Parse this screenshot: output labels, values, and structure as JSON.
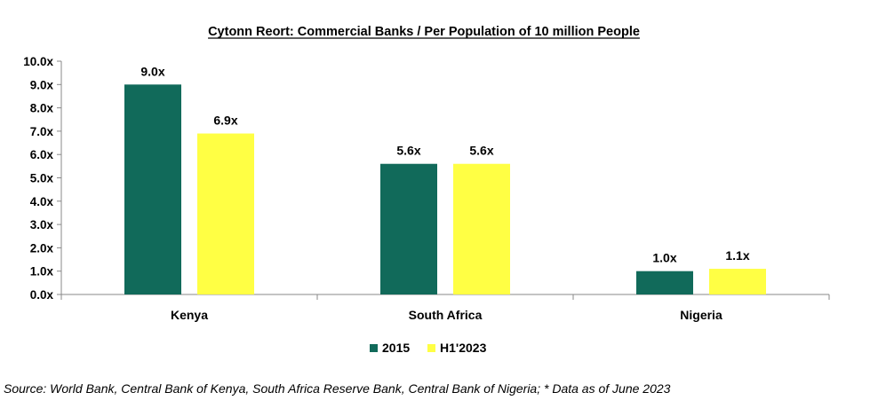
{
  "chart_data": {
    "type": "bar",
    "title": "Cytonn Reort: Commercial Banks / Per Population of 10 million People",
    "categories": [
      "Kenya",
      "South Africa",
      "Nigeria"
    ],
    "series": [
      {
        "name": "2015",
        "color": "#116a5a",
        "values": [
          9.0,
          5.6,
          1.0
        ],
        "labels": [
          "9.0x",
          "5.6x",
          "1.0x"
        ]
      },
      {
        "name": "H1'2023",
        "color": "#ffff44",
        "values": [
          6.9,
          5.6,
          1.1
        ],
        "labels": [
          "6.9x",
          "5.6x",
          "1.1x"
        ]
      }
    ],
    "ylim": [
      0,
      10
    ],
    "yticks": [
      0,
      1,
      2,
      3,
      4,
      5,
      6,
      7,
      8,
      9,
      10
    ],
    "ytick_labels": [
      "0.0x",
      "1.0x",
      "2.0x",
      "3.0x",
      "4.0x",
      "5.0x",
      "6.0x",
      "7.0x",
      "8.0x",
      "9.0x",
      "10.0x"
    ],
    "grid": false,
    "legend_position": "bottom"
  },
  "source_note": "Source: World Bank, Central Bank of Kenya, South Africa Reserve Bank, Central Bank of Nigeria; * Data as of June 2023"
}
